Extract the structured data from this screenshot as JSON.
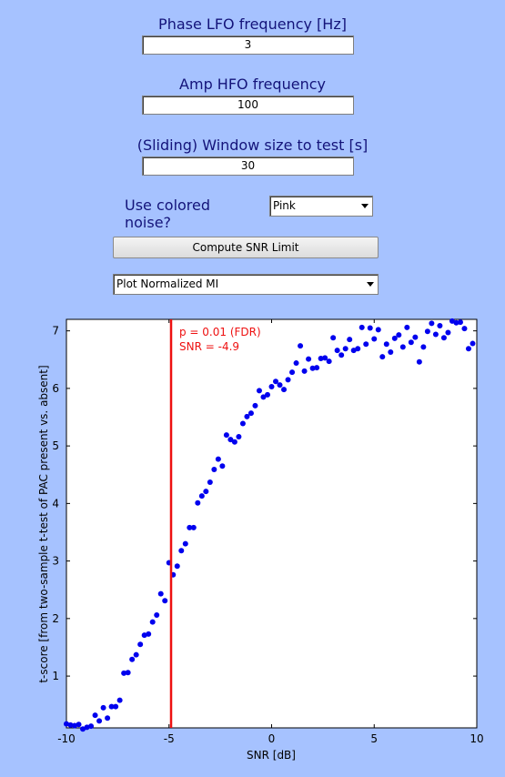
{
  "form": {
    "phase_label": "Phase LFO frequency [Hz]",
    "phase_value": "3",
    "amp_label": "Amp HFO frequency",
    "amp_value": "100",
    "window_label": "(Sliding) Window size to test [s]",
    "window_value": "30",
    "noise_label": "Use colored noise?",
    "noise_value": "Pink",
    "compute_button": "Compute SNR Limit",
    "plot_select": "Plot Normalized MI"
  },
  "colors": {
    "background": "#a6c2ff",
    "points": "#0000ee",
    "threshold": "#ee1111",
    "label_text": "#14147a"
  },
  "chart_data": {
    "type": "scatter",
    "xlabel": "SNR [dB]",
    "ylabel": "t-score [from two-sample t-test of PAC present vs. absent]",
    "xlim": [
      -10,
      10
    ],
    "ylim": [
      0.1,
      7.2
    ],
    "xticks": [
      -10,
      -5,
      0,
      5,
      10
    ],
    "yticks": [
      1,
      2,
      3,
      4,
      5,
      6,
      7
    ],
    "threshold": {
      "x": -4.9,
      "label1": "p = 0.01 (FDR)",
      "label2": "SNR = -4.9"
    },
    "points": [
      [
        -10.0,
        0.17
      ],
      [
        -9.8,
        0.15
      ],
      [
        -9.6,
        0.14
      ],
      [
        -9.4,
        0.16
      ],
      [
        -9.2,
        0.08
      ],
      [
        -9.0,
        0.11
      ],
      [
        -8.8,
        0.13
      ],
      [
        -8.6,
        0.32
      ],
      [
        -8.4,
        0.22
      ],
      [
        -8.2,
        0.45
      ],
      [
        -8.0,
        0.27
      ],
      [
        -7.8,
        0.47
      ],
      [
        -7.6,
        0.47
      ],
      [
        -7.4,
        0.58
      ],
      [
        -7.2,
        1.05
      ],
      [
        -7.0,
        1.06
      ],
      [
        -6.8,
        1.29
      ],
      [
        -6.6,
        1.37
      ],
      [
        -6.4,
        1.55
      ],
      [
        -6.2,
        1.71
      ],
      [
        -6.0,
        1.73
      ],
      [
        -5.8,
        1.94
      ],
      [
        -5.6,
        2.06
      ],
      [
        -5.4,
        2.43
      ],
      [
        -5.2,
        2.31
      ],
      [
        -5.0,
        2.97
      ],
      [
        -4.8,
        2.76
      ],
      [
        -4.6,
        2.91
      ],
      [
        -4.4,
        3.18
      ],
      [
        -4.2,
        3.3
      ],
      [
        -4.0,
        3.58
      ],
      [
        -3.8,
        3.58
      ],
      [
        -3.6,
        4.01
      ],
      [
        -3.4,
        4.13
      ],
      [
        -3.2,
        4.21
      ],
      [
        -3.0,
        4.37
      ],
      [
        -2.8,
        4.59
      ],
      [
        -2.6,
        4.77
      ],
      [
        -2.4,
        4.65
      ],
      [
        -2.2,
        5.19
      ],
      [
        -2.0,
        5.11
      ],
      [
        -1.8,
        5.07
      ],
      [
        -1.6,
        5.16
      ],
      [
        -1.4,
        5.39
      ],
      [
        -1.2,
        5.51
      ],
      [
        -1.0,
        5.57
      ],
      [
        -0.8,
        5.7
      ],
      [
        -0.6,
        5.96
      ],
      [
        -0.4,
        5.85
      ],
      [
        -0.2,
        5.89
      ],
      [
        0.0,
        6.03
      ],
      [
        0.2,
        6.12
      ],
      [
        0.4,
        6.06
      ],
      [
        0.6,
        5.98
      ],
      [
        0.8,
        6.15
      ],
      [
        1.0,
        6.28
      ],
      [
        1.2,
        6.44
      ],
      [
        1.4,
        6.74
      ],
      [
        1.6,
        6.3
      ],
      [
        1.8,
        6.51
      ],
      [
        2.0,
        6.35
      ],
      [
        2.2,
        6.36
      ],
      [
        2.4,
        6.52
      ],
      [
        2.6,
        6.53
      ],
      [
        2.8,
        6.47
      ],
      [
        3.0,
        6.88
      ],
      [
        3.2,
        6.66
      ],
      [
        3.4,
        6.58
      ],
      [
        3.6,
        6.69
      ],
      [
        3.8,
        6.85
      ],
      [
        4.0,
        6.66
      ],
      [
        4.2,
        6.69
      ],
      [
        4.4,
        7.06
      ],
      [
        4.6,
        6.77
      ],
      [
        4.8,
        7.05
      ],
      [
        5.0,
        6.86
      ],
      [
        5.2,
        7.02
      ],
      [
        5.4,
        6.55
      ],
      [
        5.6,
        6.77
      ],
      [
        5.8,
        6.63
      ],
      [
        6.0,
        6.87
      ],
      [
        6.2,
        6.93
      ],
      [
        6.4,
        6.72
      ],
      [
        6.6,
        7.06
      ],
      [
        6.8,
        6.8
      ],
      [
        7.0,
        6.89
      ],
      [
        7.2,
        6.46
      ],
      [
        7.4,
        6.72
      ],
      [
        7.6,
        6.99
      ],
      [
        7.8,
        7.13
      ],
      [
        8.0,
        6.94
      ],
      [
        8.2,
        7.09
      ],
      [
        8.4,
        6.88
      ],
      [
        8.6,
        6.97
      ],
      [
        8.8,
        7.17
      ],
      [
        9.0,
        7.14
      ],
      [
        9.2,
        7.15
      ],
      [
        9.4,
        7.04
      ],
      [
        9.6,
        6.69
      ],
      [
        9.8,
        6.78
      ]
    ]
  }
}
